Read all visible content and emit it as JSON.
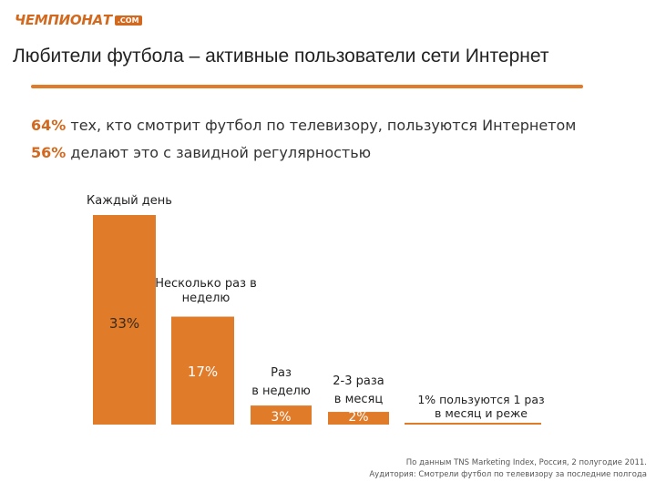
{
  "brand": {
    "logo_text": "ЧЕМПИОНАТ",
    "logo_suffix": ".COM",
    "accent": "#d2691e"
  },
  "title": "Любители футбола – активные пользователи сети Интернет",
  "stats": [
    {
      "pct": "64%",
      "text": "тех, кто смотрит футбол по телевизору, пользуются Интернетом"
    },
    {
      "pct": "56%",
      "text": "делают это с завидной регулярностью"
    }
  ],
  "chart_data": {
    "type": "bar",
    "categories": [
      "Каждый день",
      "Несколько раз в неделю",
      "Раз в неделю",
      "2-3 раза в месяц",
      "1% пользуются 1 раз в месяц и реже"
    ],
    "values": [
      33,
      17,
      3,
      2,
      1
    ],
    "value_labels": [
      "33%",
      "17%",
      "3%",
      "2%",
      ""
    ],
    "category_label_lines": [
      [
        "Каждый день"
      ],
      [
        "Несколько раз в",
        "неделю"
      ],
      [
        "Раз",
        "в неделю"
      ],
      [
        "2-3 раза",
        "в месяц"
      ],
      [
        "1% пользуются 1 раз",
        "в месяц и реже"
      ]
    ],
    "bar_color": "#e07b2a",
    "ylim": [
      0,
      33
    ],
    "grid": false
  },
  "source": [
    "По данным TNS Marketing Index, Россия, 2 полугодие 2011.",
    "Аудитория: Смотрели футбол по телевизору за последние полгода"
  ]
}
